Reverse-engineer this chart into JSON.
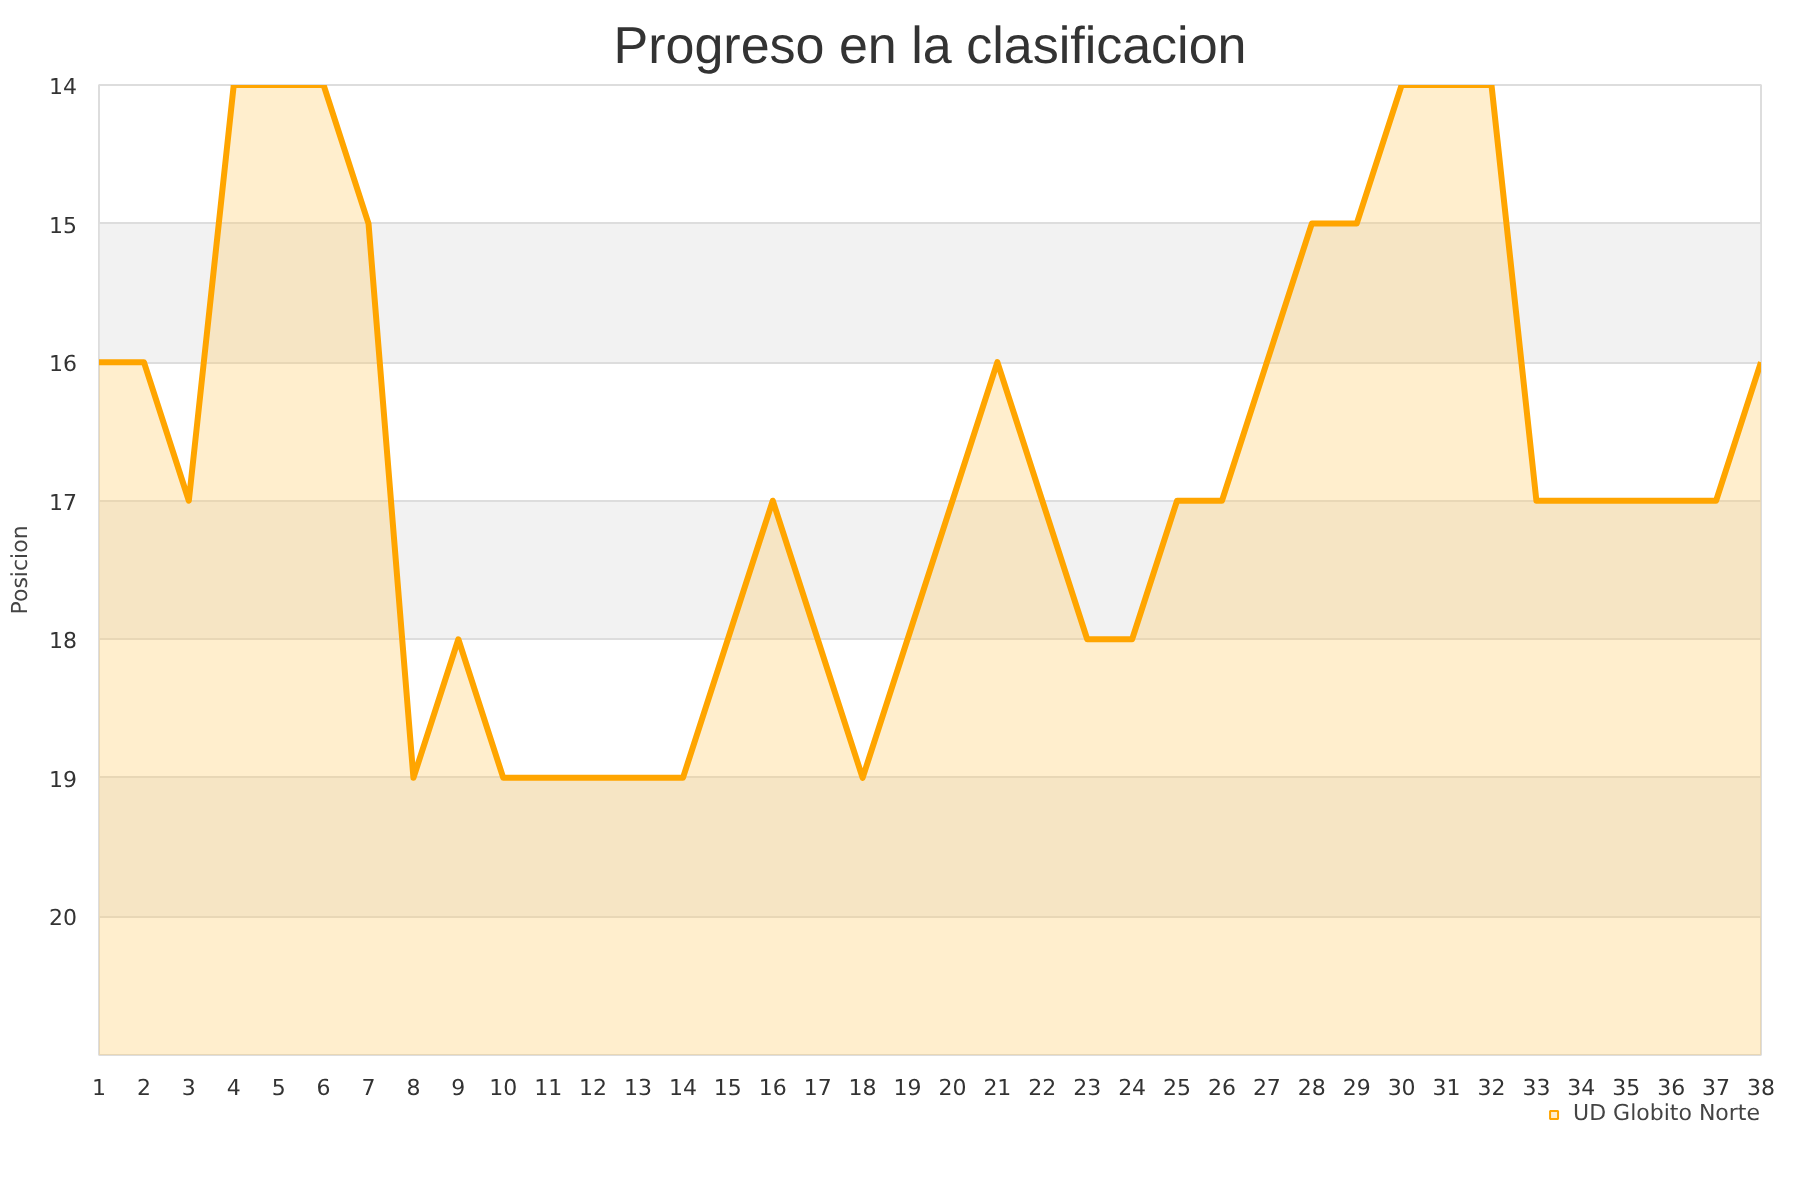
{
  "chart_data": {
    "type": "area",
    "title": "Progreso en la clasificacion",
    "ylabel": "Posicion",
    "x": [
      1,
      2,
      3,
      4,
      5,
      6,
      7,
      8,
      9,
      10,
      11,
      12,
      13,
      14,
      15,
      16,
      17,
      18,
      19,
      20,
      21,
      22,
      23,
      24,
      25,
      26,
      27,
      28,
      29,
      30,
      31,
      32,
      33,
      34,
      35,
      36,
      37,
      38
    ],
    "series": [
      {
        "name": "UD Globito Norte",
        "color": "#ffa500",
        "values": [
          16,
          16,
          17,
          14,
          14,
          14,
          15,
          19,
          18,
          19,
          19,
          19,
          19,
          19,
          18,
          17,
          18,
          19,
          18,
          17,
          16,
          17,
          18,
          18,
          17,
          17,
          16,
          15,
          15,
          14,
          14,
          14,
          17,
          17,
          17,
          17,
          17,
          16
        ]
      }
    ],
    "xlim": [
      1,
      38
    ],
    "xticks": [
      1,
      2,
      3,
      4,
      5,
      6,
      7,
      8,
      9,
      10,
      11,
      12,
      13,
      14,
      15,
      16,
      17,
      18,
      19,
      20,
      21,
      22,
      23,
      24,
      25,
      26,
      27,
      28,
      29,
      30,
      31,
      32,
      33,
      34,
      35,
      36,
      37,
      38
    ],
    "ylim": [
      21,
      14
    ],
    "yticks": [
      14,
      15,
      16,
      17,
      18,
      19,
      20
    ],
    "grid": "y",
    "legend": "bottom right"
  }
}
